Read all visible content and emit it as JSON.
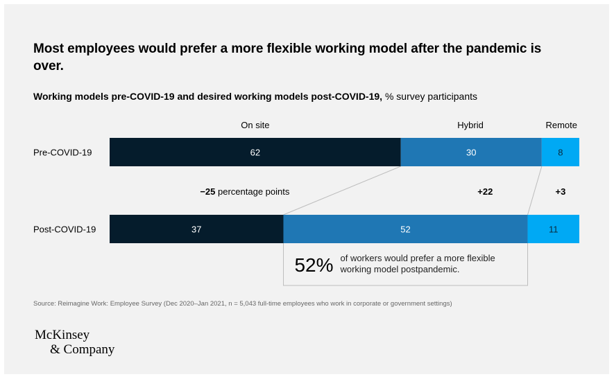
{
  "header": {
    "title": "Most employees would prefer a more flexible working model after the pandemic is over.",
    "subtitle_bold": "Working models pre-COVID-19 and desired working models post-COVID-19,",
    "subtitle_unit": "% survey participants"
  },
  "chart_data": {
    "type": "bar",
    "orientation": "horizontal",
    "stacked": true,
    "categories": [
      "Pre-COVID-19",
      "Post-COVID-19"
    ],
    "series": [
      {
        "name": "On site",
        "values": [
          62,
          37
        ],
        "color": "#051c2c"
      },
      {
        "name": "Hybrid",
        "values": [
          30,
          52
        ],
        "color": "#1f77b4"
      },
      {
        "name": "Remote",
        "values": [
          8,
          11
        ],
        "color": "#00a9f4"
      }
    ],
    "changes": [
      {
        "value": "−25",
        "suffix": "percentage points"
      },
      {
        "value": "+22",
        "suffix": ""
      },
      {
        "value": "+3",
        "suffix": ""
      }
    ],
    "callout": {
      "value": "52%",
      "text_line1": "of workers would prefer a more flexible",
      "text_line2": "working model postpandemic."
    },
    "xlim": [
      0,
      100
    ],
    "grid": false
  },
  "footer": {
    "source": "Source: Reimagine Work: Employee Survey (Dec 2020–Jan 2021, n = 5,043 full-time employees who work in corporate or government settings)",
    "logo_line1": "McKinsey",
    "logo_line2": "& Company"
  }
}
